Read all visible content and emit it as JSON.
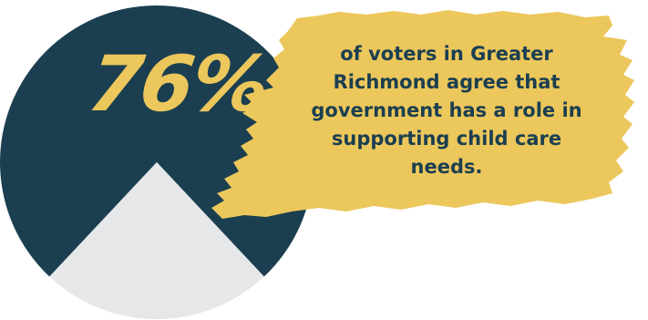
{
  "chart_data": {
    "type": "pie",
    "values": [
      76,
      24
    ],
    "highlight_label": "76%",
    "caption": "of voters in Greater Richmond agree that government has a role in supporting child care needs."
  },
  "colors": {
    "majority_slice": "#1b3f50",
    "minority_slice": "#e6e7e9",
    "highlight_brush": "#ecc75c",
    "percent_text": "#ecc75c",
    "caption_text": "#1b3f50"
  }
}
